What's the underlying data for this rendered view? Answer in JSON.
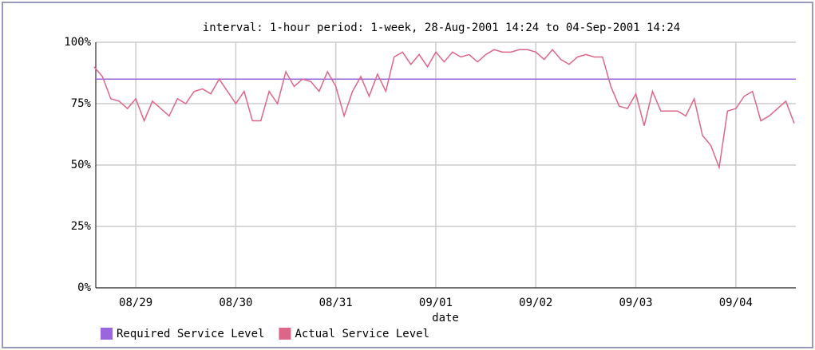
{
  "chart_data": {
    "type": "line",
    "title": "interval: 1-hour  period: 1-week, 28-Aug-2001 14:24 to 04-Sep-2001 14:24",
    "xlabel": "date",
    "xlim": [
      "2001-08-28T14:24",
      "2001-09-04T14:24"
    ],
    "xticks": [
      {
        "value": "2001-08-29T00:00",
        "label": "08/29"
      },
      {
        "value": "2001-08-30T00:00",
        "label": "08/30"
      },
      {
        "value": "2001-08-31T00:00",
        "label": "08/31"
      },
      {
        "value": "2001-09-01T00:00",
        "label": "09/01"
      },
      {
        "value": "2001-09-02T00:00",
        "label": "09/02"
      },
      {
        "value": "2001-09-03T00:00",
        "label": "09/03"
      },
      {
        "value": "2001-09-04T00:00",
        "label": "09/04"
      }
    ],
    "ylim": [
      0,
      100
    ],
    "yticks": [
      {
        "value": 0,
        "label": "0%"
      },
      {
        "value": 25,
        "label": "25%"
      },
      {
        "value": 50,
        "label": "50%"
      },
      {
        "value": 75,
        "label": "75%"
      },
      {
        "value": 100,
        "label": "100%"
      }
    ],
    "grid": true,
    "series": [
      {
        "name": "Required Service Level",
        "color": "#9966dd",
        "x": [
          "2001-08-28T14:24",
          "2001-09-04T14:24"
        ],
        "values": [
          85,
          85
        ]
      },
      {
        "name": "Actual Service Level",
        "color": "#dd6688",
        "x": [
          "2001-08-28T14:00",
          "2001-08-28T16:00",
          "2001-08-28T18:00",
          "2001-08-28T20:00",
          "2001-08-28T22:00",
          "2001-08-29T00:00",
          "2001-08-29T02:00",
          "2001-08-29T04:00",
          "2001-08-29T06:00",
          "2001-08-29T08:00",
          "2001-08-29T10:00",
          "2001-08-29T12:00",
          "2001-08-29T14:00",
          "2001-08-29T16:00",
          "2001-08-29T18:00",
          "2001-08-29T20:00",
          "2001-08-29T22:00",
          "2001-08-30T00:00",
          "2001-08-30T02:00",
          "2001-08-30T04:00",
          "2001-08-30T06:00",
          "2001-08-30T08:00",
          "2001-08-30T10:00",
          "2001-08-30T12:00",
          "2001-08-30T14:00",
          "2001-08-30T16:00",
          "2001-08-30T18:00",
          "2001-08-30T20:00",
          "2001-08-30T22:00",
          "2001-08-31T00:00",
          "2001-08-31T02:00",
          "2001-08-31T04:00",
          "2001-08-31T06:00",
          "2001-08-31T08:00",
          "2001-08-31T10:00",
          "2001-08-31T12:00",
          "2001-08-31T14:00",
          "2001-08-31T16:00",
          "2001-08-31T18:00",
          "2001-08-31T20:00",
          "2001-08-31T22:00",
          "2001-09-01T00:00",
          "2001-09-01T02:00",
          "2001-09-01T04:00",
          "2001-09-01T06:00",
          "2001-09-01T08:00",
          "2001-09-01T10:00",
          "2001-09-01T12:00",
          "2001-09-01T14:00",
          "2001-09-01T16:00",
          "2001-09-01T18:00",
          "2001-09-01T20:00",
          "2001-09-01T22:00",
          "2001-09-02T00:00",
          "2001-09-02T02:00",
          "2001-09-02T04:00",
          "2001-09-02T06:00",
          "2001-09-02T08:00",
          "2001-09-02T10:00",
          "2001-09-02T12:00",
          "2001-09-02T14:00",
          "2001-09-02T16:00",
          "2001-09-02T18:00",
          "2001-09-02T20:00",
          "2001-09-02T22:00",
          "2001-09-03T00:00",
          "2001-09-03T02:00",
          "2001-09-03T04:00",
          "2001-09-03T06:00",
          "2001-09-03T08:00",
          "2001-09-03T10:00",
          "2001-09-03T12:00",
          "2001-09-03T14:00",
          "2001-09-03T16:00",
          "2001-09-03T18:00",
          "2001-09-03T20:00",
          "2001-09-03T22:00",
          "2001-09-04T00:00",
          "2001-09-04T02:00",
          "2001-09-04T04:00",
          "2001-09-04T06:00",
          "2001-09-04T08:00",
          "2001-09-04T10:00",
          "2001-09-04T12:00",
          "2001-09-04T14:00"
        ],
        "values": [
          90,
          86,
          77,
          76,
          73,
          77,
          68,
          76,
          73,
          70,
          77,
          75,
          80,
          81,
          79,
          85,
          80,
          75,
          80,
          68,
          68,
          80,
          75,
          88,
          82,
          85,
          84,
          80,
          88,
          82,
          70,
          80,
          86,
          78,
          87,
          80,
          94,
          96,
          91,
          95,
          90,
          96,
          92,
          96,
          94,
          95,
          92,
          95,
          97,
          96,
          96,
          97,
          97,
          96,
          93,
          97,
          93,
          91,
          94,
          95,
          94,
          94,
          82,
          74,
          73,
          79,
          66,
          80,
          72,
          72,
          72,
          70,
          77,
          62,
          58,
          49,
          72,
          73,
          78,
          80,
          68,
          70,
          73,
          76,
          67
        ]
      }
    ]
  }
}
